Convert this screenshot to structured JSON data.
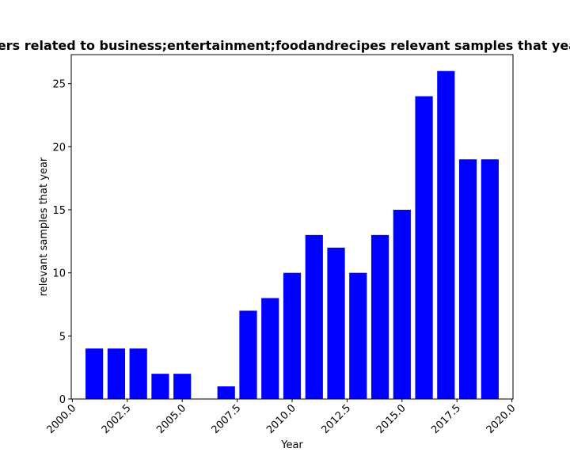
{
  "chart_data": {
    "type": "bar",
    "title": "Number of papers related to business;entertainment;foodandrecipes relevant samples that year in publications",
    "xlabel": "Year",
    "ylabel": "relevant samples that year",
    "x": [
      2001,
      2002,
      2003,
      2004,
      2005,
      2007,
      2008,
      2009,
      2010,
      2011,
      2012,
      2013,
      2014,
      2015,
      2016,
      2017,
      2018,
      2019
    ],
    "values": [
      4,
      4,
      4,
      2,
      2,
      1,
      7,
      8,
      10,
      13,
      12,
      10,
      13,
      15,
      24,
      26,
      19,
      19
    ],
    "xlim": [
      1999.95,
      2020.05
    ],
    "ylim": [
      0,
      27.3
    ],
    "x_ticks": [
      2000.0,
      2002.5,
      2005.0,
      2007.5,
      2010.0,
      2012.5,
      2015.0,
      2017.5,
      2020.0
    ],
    "x_tick_labels": [
      "2000.0",
      "2002.5",
      "2005.0",
      "2007.5",
      "2010.0",
      "2012.5",
      "2015.0",
      "2017.5",
      "2020.0"
    ],
    "y_ticks": [
      0,
      5,
      10,
      15,
      20,
      25
    ],
    "y_tick_labels": [
      "0",
      "5",
      "10",
      "15",
      "20",
      "25"
    ],
    "bar_width": 0.8,
    "bar_color": "#0000ff",
    "grid": false,
    "legend": "none"
  }
}
